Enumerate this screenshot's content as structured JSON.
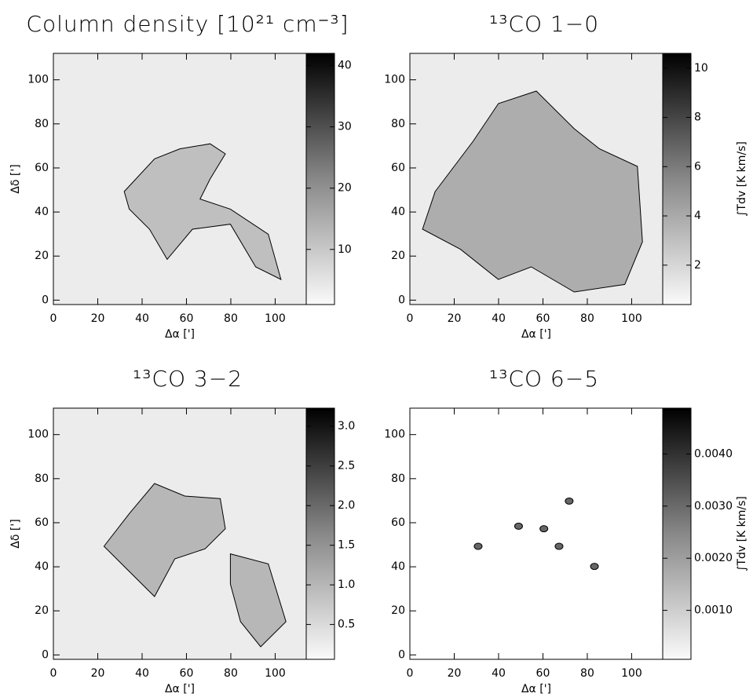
{
  "chart_data": [
    {
      "type": "heatmap",
      "title": "Column density [10²¹ cm⁻³]",
      "xlabel": "Δα [']",
      "ylabel": "Δδ [']",
      "xlim": [
        0,
        114
      ],
      "ylim": [
        -2,
        112
      ],
      "xticks": [
        0,
        20,
        40,
        60,
        80,
        100
      ],
      "yticks": [
        0,
        20,
        40,
        60,
        80,
        100
      ],
      "clim": [
        1,
        42
      ],
      "cticks": [
        10,
        20,
        30,
        40
      ]
    },
    {
      "type": "heatmap",
      "title": "¹³CO 1−0",
      "xlabel": "Δα [']",
      "clabel": "∫Tdv [K km/s]",
      "xlim": [
        0,
        114
      ],
      "ylim": [
        -2,
        112
      ],
      "xticks": [
        0,
        20,
        40,
        60,
        80,
        100
      ],
      "yticks": [
        0,
        20,
        40,
        60,
        80,
        100
      ],
      "clim": [
        0.4,
        10.6
      ],
      "cticks": [
        2,
        4,
        6,
        8,
        10
      ]
    },
    {
      "type": "heatmap",
      "title": "¹³CO 3−2",
      "xlabel": "Δα [']",
      "ylabel": "Δδ [']",
      "xlim": [
        0,
        114
      ],
      "ylim": [
        -2,
        112
      ],
      "xticks": [
        0,
        20,
        40,
        60,
        80,
        100
      ],
      "yticks": [
        0,
        20,
        40,
        60,
        80,
        100
      ],
      "clim": [
        0.06,
        3.23
      ],
      "cticks": [
        0.5,
        {
          "value": 1,
          "label": "1.0"
        },
        1.5,
        {
          "value": 2,
          "label": "2.0"
        },
        2.5,
        {
          "value": 3,
          "label": "3.0"
        }
      ]
    },
    {
      "type": "heatmap",
      "title": "¹³CO 6−5",
      "xlabel": "Δα [']",
      "clabel": "∫Tdv [K km/s]",
      "xlim": [
        0,
        114
      ],
      "ylim": [
        -2,
        112
      ],
      "xticks": [
        0,
        20,
        40,
        60,
        80,
        100
      ],
      "yticks": [
        0,
        20,
        40,
        60,
        80,
        100
      ],
      "clim": [
        6e-05,
        0.00488
      ],
      "cticks": [
        {
          "value": 0.001,
          "label": "0.0010"
        },
        {
          "value": 0.002,
          "label": "0.0020"
        },
        {
          "value": 0.003,
          "label": "0.0030"
        },
        {
          "value": 0.004,
          "label": "0.0040"
        }
      ]
    }
  ]
}
